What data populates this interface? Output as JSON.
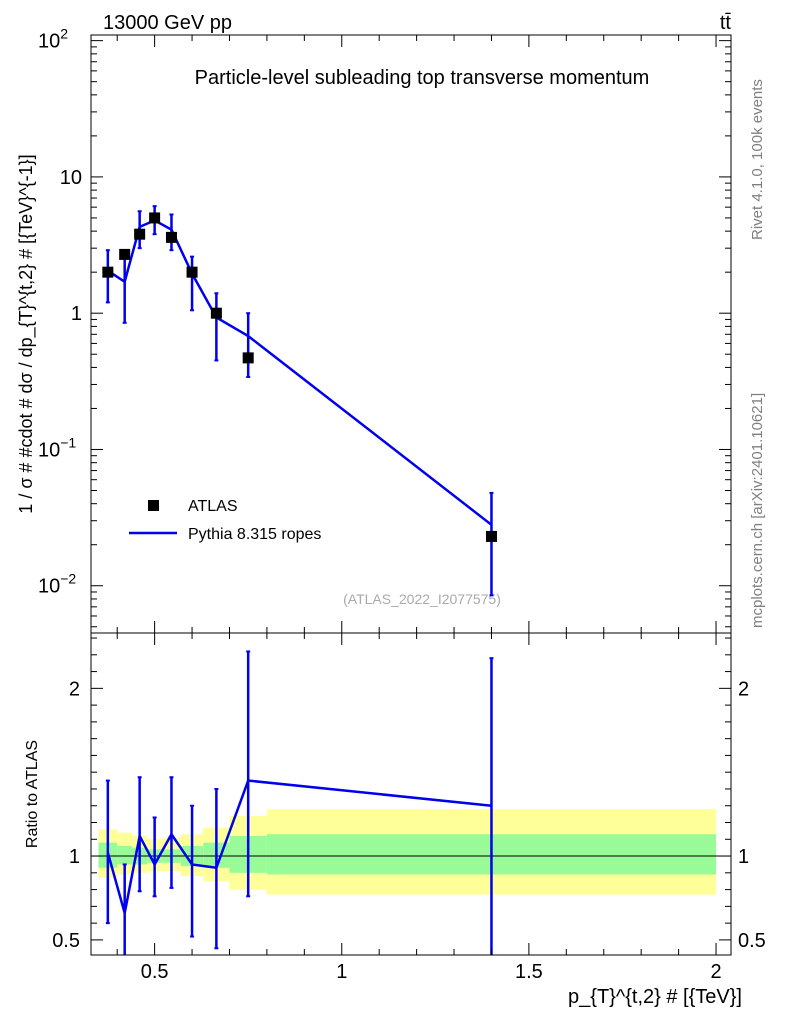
{
  "header": {
    "left": "13000 GeV pp",
    "right": "tt̄"
  },
  "side_labels": {
    "rivet": "Rivet 4.1.0,  100k events",
    "mcplots": "mcplots.cern.ch [arXiv:2401.10621]"
  },
  "watermark": "(ATLAS_2022_I2077575)",
  "colors": {
    "model": "#0000ee",
    "band_stat": "#98fb98",
    "band_total": "#ffff99",
    "data": "#000000"
  },
  "chart_data": [
    {
      "type": "scatter",
      "name": "main",
      "title": "Particle-level subleading top transverse momentum",
      "ylabel": "1 / σ # #cdot # dσ / dp_{T}^{t,2} # [{TeV}^{-1}]",
      "yscale": "log",
      "ylim": [
        0.0045,
        110
      ],
      "xlim": [
        0.33,
        2.04
      ],
      "ytick_labels": [
        {
          "v": 100,
          "base": "10",
          "exp": "2"
        },
        {
          "v": 10,
          "base": "10",
          "exp": ""
        },
        {
          "v": 1,
          "base": "1",
          "exp": ""
        },
        {
          "v": 0.1,
          "base": "10",
          "exp": "−1"
        },
        {
          "v": 0.01,
          "base": "10",
          "exp": "−2"
        }
      ],
      "legend": [
        {
          "label": "ATLAS",
          "marker": "square"
        },
        {
          "label": "Pythia 8.315 ropes",
          "marker": "line"
        }
      ],
      "data_series": {
        "name": "ATLAS",
        "points": [
          {
            "x": 0.375,
            "y": 2.0,
            "xlo": 0.35,
            "xhi": 0.4
          },
          {
            "x": 0.42,
            "y": 2.7,
            "xlo": 0.4,
            "xhi": 0.44
          },
          {
            "x": 0.46,
            "y": 3.8,
            "xlo": 0.44,
            "xhi": 0.48
          },
          {
            "x": 0.5,
            "y": 5.0,
            "xlo": 0.48,
            "xhi": 0.52
          },
          {
            "x": 0.545,
            "y": 3.6,
            "xlo": 0.52,
            "xhi": 0.57
          },
          {
            "x": 0.6,
            "y": 2.0,
            "xlo": 0.57,
            "xhi": 0.63
          },
          {
            "x": 0.665,
            "y": 1.0,
            "xlo": 0.63,
            "xhi": 0.7
          },
          {
            "x": 0.75,
            "y": 0.47,
            "xlo": 0.7,
            "xhi": 0.8
          },
          {
            "x": 1.4,
            "y": 0.023,
            "xlo": 0.8,
            "xhi": 2.0
          }
        ]
      },
      "model_series": {
        "name": "Pythia 8.315 ropes",
        "points": [
          {
            "x": 0.375,
            "y": 2.05,
            "ylo": 1.2,
            "yhi": 2.9
          },
          {
            "x": 0.42,
            "y": 1.7,
            "ylo": 0.85,
            "yhi": 2.6
          },
          {
            "x": 0.46,
            "y": 4.3,
            "ylo": 3.0,
            "yhi": 5.6
          },
          {
            "x": 0.5,
            "y": 4.8,
            "ylo": 3.8,
            "yhi": 6.1
          },
          {
            "x": 0.545,
            "y": 4.1,
            "ylo": 2.9,
            "yhi": 5.3
          },
          {
            "x": 0.6,
            "y": 1.95,
            "ylo": 1.05,
            "yhi": 2.6
          },
          {
            "x": 0.665,
            "y": 0.93,
            "ylo": 0.45,
            "yhi": 1.4
          },
          {
            "x": 0.75,
            "y": 0.68,
            "ylo": 0.34,
            "yhi": 1.0
          },
          {
            "x": 1.4,
            "y": 0.028,
            "ylo": 0.0085,
            "yhi": 0.048
          }
        ]
      }
    },
    {
      "type": "line",
      "name": "ratio",
      "ylabel": "Ratio to ATLAS",
      "xlabel": "p_{T}^{t,2} # [{TeV}]",
      "xlim": [
        0.33,
        2.04
      ],
      "ylim": [
        0.41,
        2.33
      ],
      "xtick_labels": [
        {
          "v": 0.5,
          "label": "0.5"
        },
        {
          "v": 1,
          "label": "1"
        },
        {
          "v": 1.5,
          "label": "1.5"
        },
        {
          "v": 2,
          "label": "2"
        }
      ],
      "ytick_labels": [
        {
          "v": 2,
          "label": "2"
        },
        {
          "v": 1,
          "label": "1"
        },
        {
          "v": 0.5,
          "label": "0.5"
        }
      ],
      "bands": [
        {
          "xlo": 0.35,
          "xhi": 0.4,
          "total_lo": 0.87,
          "total_hi": 1.16,
          "stat_lo": 0.93,
          "stat_hi": 1.08
        },
        {
          "xlo": 0.4,
          "xhi": 0.44,
          "total_lo": 0.89,
          "total_hi": 1.14,
          "stat_lo": 0.95,
          "stat_hi": 1.06
        },
        {
          "xlo": 0.44,
          "xhi": 0.48,
          "total_lo": 0.9,
          "total_hi": 1.12,
          "stat_lo": 0.95,
          "stat_hi": 1.05
        },
        {
          "xlo": 0.48,
          "xhi": 0.52,
          "total_lo": 0.91,
          "total_hi": 1.1,
          "stat_lo": 0.96,
          "stat_hi": 1.04
        },
        {
          "xlo": 0.52,
          "xhi": 0.57,
          "total_lo": 0.91,
          "total_hi": 1.11,
          "stat_lo": 0.96,
          "stat_hi": 1.04
        },
        {
          "xlo": 0.57,
          "xhi": 0.63,
          "total_lo": 0.88,
          "total_hi": 1.13,
          "stat_lo": 0.94,
          "stat_hi": 1.06
        },
        {
          "xlo": 0.63,
          "xhi": 0.7,
          "total_lo": 0.85,
          "total_hi": 1.17,
          "stat_lo": 0.93,
          "stat_hi": 1.08
        },
        {
          "xlo": 0.7,
          "xhi": 0.8,
          "total_lo": 0.8,
          "total_hi": 1.24,
          "stat_lo": 0.9,
          "stat_hi": 1.12
        },
        {
          "xlo": 0.8,
          "xhi": 1.4,
          "total_lo": 0.77,
          "total_hi": 1.28,
          "stat_lo": 0.89,
          "stat_hi": 1.13
        },
        {
          "xlo": 1.4,
          "xhi": 2.0,
          "total_lo": 0.77,
          "total_hi": 1.28,
          "stat_lo": 0.89,
          "stat_hi": 1.13
        }
      ],
      "model_ratio": [
        {
          "x": 0.375,
          "y": 1.02,
          "ylo": 0.6,
          "yhi": 1.45
        },
        {
          "x": 0.42,
          "y": 0.66,
          "ylo": 0.35,
          "yhi": 0.95
        },
        {
          "x": 0.46,
          "y": 1.12,
          "ylo": 0.79,
          "yhi": 1.47
        },
        {
          "x": 0.5,
          "y": 0.95,
          "ylo": 0.76,
          "yhi": 1.23
        },
        {
          "x": 0.545,
          "y": 1.13,
          "ylo": 0.81,
          "yhi": 1.47
        },
        {
          "x": 0.6,
          "y": 0.95,
          "ylo": 0.52,
          "yhi": 1.3
        },
        {
          "x": 0.665,
          "y": 0.93,
          "ylo": 0.45,
          "yhi": 1.4
        },
        {
          "x": 0.75,
          "y": 1.45,
          "ylo": 0.76,
          "yhi": 2.22
        },
        {
          "x": 1.4,
          "y": 1.3,
          "ylo": 0.37,
          "yhi": 2.18
        }
      ]
    }
  ]
}
